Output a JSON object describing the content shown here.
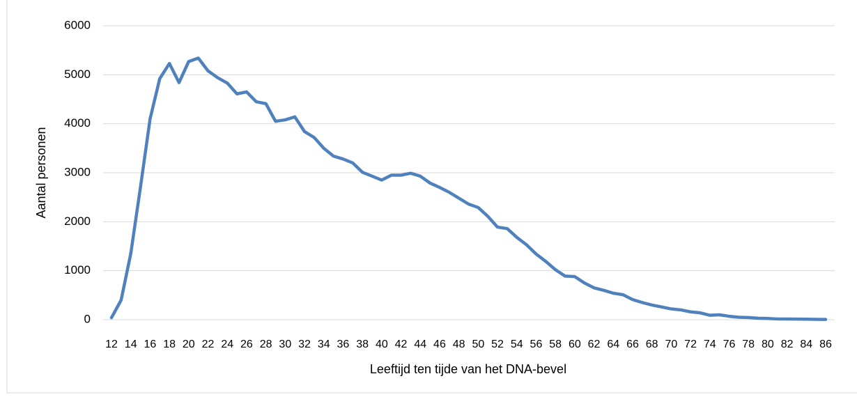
{
  "chart_data": {
    "type": "line",
    "y_label": "Aantal personen",
    "x_label": "Leeftijd ten tijde van het DNA-bevel",
    "categories": [
      "12",
      null,
      "14",
      null,
      "16",
      null,
      "18",
      null,
      "20",
      null,
      "22",
      null,
      "24",
      null,
      "26",
      null,
      "28",
      null,
      "30",
      null,
      "32",
      null,
      "34",
      null,
      "36",
      null,
      "38",
      null,
      "40",
      null,
      "42",
      null,
      "44",
      null,
      "46",
      null,
      "48",
      null,
      "50",
      null,
      "52",
      null,
      "54",
      null,
      "56",
      null,
      "58",
      null,
      "60",
      null,
      "62",
      null,
      "64",
      null,
      "66",
      null,
      "68",
      null,
      "70",
      null,
      "72",
      null,
      "74",
      null,
      "76",
      null,
      "78",
      null,
      "80",
      null,
      "82",
      null,
      "84",
      null,
      "86"
    ],
    "series": [
      {
        "color": "#4f81bd",
        "values": [
          40,
          400,
          1350,
          2700,
          4100,
          4920,
          5230,
          4840,
          5270,
          5340,
          5080,
          4940,
          4830,
          4610,
          4650,
          4450,
          4410,
          4050,
          4080,
          4140,
          3840,
          3720,
          3500,
          3340,
          3280,
          3200,
          3010,
          2930,
          2850,
          2950,
          2950,
          2990,
          2930,
          2790,
          2700,
          2600,
          2480,
          2360,
          2290,
          2110,
          1890,
          1860,
          1680,
          1530,
          1340,
          1190,
          1020,
          890,
          880,
          750,
          650,
          600,
          540,
          510,
          410,
          350,
          300,
          260,
          220,
          200,
          160,
          140,
          90,
          100,
          70,
          50,
          45,
          30,
          25,
          15,
          15,
          12,
          10,
          8,
          5
        ]
      }
    ],
    "ylim": [
      0,
      6000
    ],
    "yticks": [
      0,
      1000,
      2000,
      3000,
      4000,
      5000,
      6000
    ],
    "grid": true
  }
}
